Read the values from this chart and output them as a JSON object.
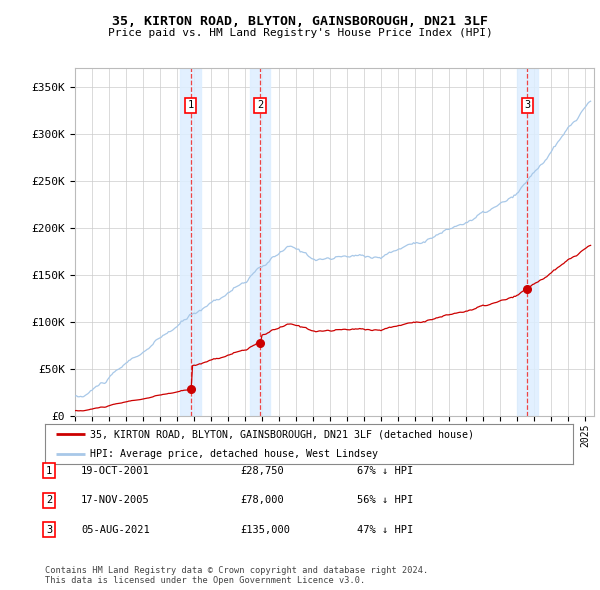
{
  "title": "35, KIRTON ROAD, BLYTON, GAINSBOROUGH, DN21 3LF",
  "subtitle": "Price paid vs. HM Land Registry's House Price Index (HPI)",
  "ylabel_ticks": [
    "£0",
    "£50K",
    "£100K",
    "£150K",
    "£200K",
    "£250K",
    "£300K",
    "£350K"
  ],
  "ylim": [
    0,
    370000
  ],
  "xlim_start": 1995.0,
  "xlim_end": 2025.5,
  "sale_dates": [
    2001.79,
    2005.88,
    2021.59
  ],
  "sale_prices": [
    28750,
    78000,
    135000
  ],
  "sale_labels": [
    "1",
    "2",
    "3"
  ],
  "sale_label_info": [
    {
      "num": "1",
      "date": "19-OCT-2001",
      "price": "£28,750",
      "pct": "67% ↓ HPI"
    },
    {
      "num": "2",
      "date": "17-NOV-2005",
      "price": "£78,000",
      "pct": "56% ↓ HPI"
    },
    {
      "num": "3",
      "date": "05-AUG-2021",
      "price": "£135,000",
      "pct": "47% ↓ HPI"
    }
  ],
  "hpi_color": "#a8c8e8",
  "sale_color": "#cc0000",
  "vline_color": "#ee4444",
  "shade_color": "#ddeeff",
  "legend_label_sale": "35, KIRTON ROAD, BLYTON, GAINSBOROUGH, DN21 3LF (detached house)",
  "legend_label_hpi": "HPI: Average price, detached house, West Lindsey",
  "footnote": "Contains HM Land Registry data © Crown copyright and database right 2024.\nThis data is licensed under the Open Government Licence v3.0.",
  "background_color": "#ffffff",
  "grid_color": "#cccccc"
}
